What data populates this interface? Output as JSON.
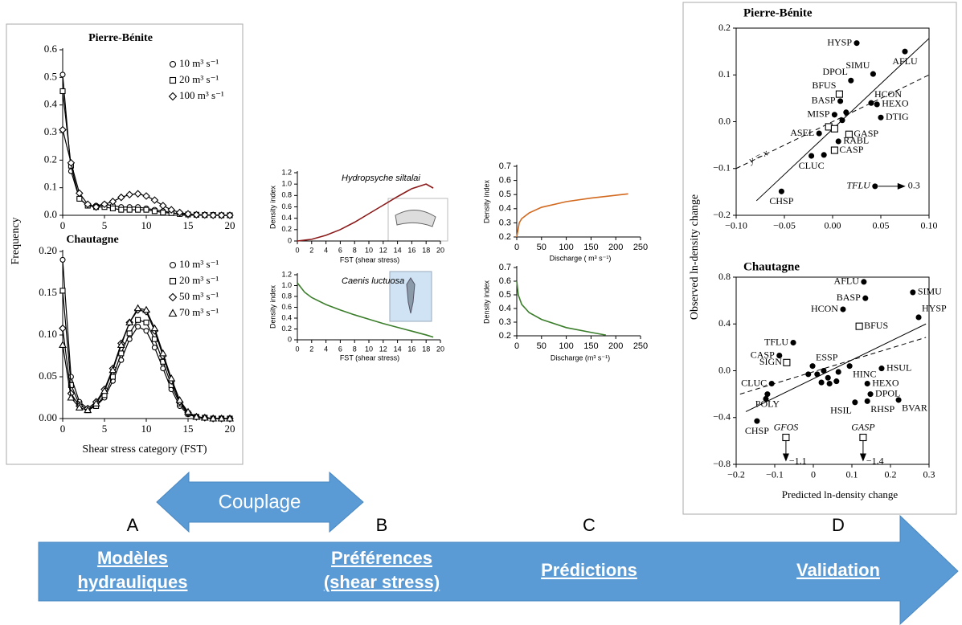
{
  "slide": {
    "couplage": "Couplage",
    "steps": [
      {
        "letter": "A",
        "label": [
          "Modèles",
          "hydrauliques"
        ]
      },
      {
        "letter": "B",
        "label": [
          "Préférences",
          "(shear stress)"
        ]
      },
      {
        "letter": "C",
        "label": [
          "Prédictions"
        ]
      },
      {
        "letter": "D",
        "label": [
          "Validation"
        ]
      }
    ]
  },
  "chart_data": [
    {
      "type": "line",
      "title": "Pierre-Bénite",
      "ylabel": "Frequency",
      "legend": "upper right",
      "xlim": [
        0,
        20
      ],
      "ylim": [
        0,
        0.6
      ],
      "xticks": [
        0,
        5,
        10,
        15,
        20
      ],
      "yticks": [
        {
          "value": 0,
          "label": "0.0"
        },
        0.1,
        0.2,
        0.3,
        0.4,
        0.5,
        0.6
      ],
      "x": [
        0,
        1,
        2,
        3,
        4,
        5,
        6,
        7,
        8,
        9,
        10,
        11,
        12,
        13,
        14,
        15,
        16,
        17,
        18,
        19,
        20
      ],
      "series": [
        {
          "name": "10 m³ s⁻¹",
          "color": "#000000",
          "marker": "circle-open",
          "values": [
            0.51,
            0.16,
            0.06,
            0.035,
            0.035,
            0.04,
            0.035,
            0.03,
            0.03,
            0.03,
            0.025,
            0.02,
            0.015,
            0.01,
            0.005,
            0.003,
            0.002,
            0.001,
            0.001,
            0,
            0
          ]
        },
        {
          "name": "20 m³ s⁻¹",
          "color": "#000000",
          "marker": "square-open",
          "values": [
            0.45,
            0.18,
            0.06,
            0.035,
            0.03,
            0.03,
            0.025,
            0.02,
            0.02,
            0.02,
            0.02,
            0.015,
            0.01,
            0.008,
            0.005,
            0.003,
            0.002,
            0.001,
            0.001,
            0,
            0
          ]
        },
        {
          "name": "100 m³ s⁻¹",
          "color": "#000000",
          "marker": "diamond-open",
          "values": [
            0.31,
            0.19,
            0.08,
            0.04,
            0.03,
            0.04,
            0.05,
            0.065,
            0.075,
            0.078,
            0.07,
            0.055,
            0.035,
            0.02,
            0.01,
            0.005,
            0.002,
            0.001,
            0,
            0,
            0
          ]
        }
      ]
    },
    {
      "type": "line",
      "title": "Chautagne",
      "xlabel": "Shear stress category (FST)",
      "legend": "upper right",
      "xlim": [
        0,
        20
      ],
      "ylim": [
        0,
        0.2
      ],
      "xticks": [
        0,
        5,
        10,
        15,
        20
      ],
      "yticks": [
        {
          "value": 0,
          "label": "0.00"
        },
        0.05,
        {
          "value": 0.1,
          "label": "0.10"
        },
        0.15,
        {
          "value": 0.2,
          "label": "0.20"
        }
      ],
      "x": [
        0,
        1,
        2,
        3,
        4,
        5,
        6,
        7,
        8,
        9,
        10,
        11,
        12,
        13,
        14,
        15,
        16,
        17,
        18,
        19,
        20
      ],
      "series": [
        {
          "name": "10 m³ s⁻¹",
          "color": "#000000",
          "marker": "circle-open",
          "values": [
            0.19,
            0.05,
            0.02,
            0.012,
            0.015,
            0.025,
            0.045,
            0.07,
            0.095,
            0.11,
            0.105,
            0.085,
            0.06,
            0.035,
            0.015,
            0.005,
            0.002,
            0.001,
            0,
            0,
            0
          ]
        },
        {
          "name": "20 m³ s⁻¹",
          "color": "#000000",
          "marker": "square-open",
          "values": [
            0.153,
            0.04,
            0.017,
            0.01,
            0.015,
            0.028,
            0.05,
            0.078,
            0.102,
            0.118,
            0.115,
            0.095,
            0.068,
            0.04,
            0.018,
            0.006,
            0.002,
            0.001,
            0,
            0,
            0
          ]
        },
        {
          "name": "50 m³ s⁻¹",
          "color": "#000000",
          "marker": "diamond-open",
          "values": [
            0.108,
            0.03,
            0.015,
            0.012,
            0.02,
            0.035,
            0.06,
            0.09,
            0.115,
            0.13,
            0.128,
            0.105,
            0.075,
            0.045,
            0.02,
            0.007,
            0.002,
            0.001,
            0,
            0,
            0
          ]
        },
        {
          "name": "70 m³ s⁻¹",
          "color": "#000000",
          "marker": "triangle-open",
          "values": [
            0.088,
            0.025,
            0.013,
            0.01,
            0.018,
            0.033,
            0.058,
            0.088,
            0.115,
            0.132,
            0.13,
            0.108,
            0.078,
            0.048,
            0.022,
            0.008,
            0.002,
            0.001,
            0,
            0,
            0
          ]
        }
      ]
    },
    {
      "type": "line",
      "title": "Hydropsyche siltalai",
      "xlabel": "FST (shear stress)",
      "ylabel": "Density index",
      "xlim": [
        0,
        20
      ],
      "ylim": [
        0,
        1.2
      ],
      "xticks": [
        0,
        2,
        4,
        6,
        8,
        10,
        12,
        14,
        16,
        18,
        20
      ],
      "yticks": [
        0,
        0.2,
        0.4,
        0.6,
        0.8,
        {
          "value": 1,
          "label": "1.0"
        },
        1.2
      ],
      "x": [
        0,
        2,
        4,
        6,
        8,
        10,
        12,
        14,
        16,
        18,
        19
      ],
      "series": [
        {
          "color": "#8b1a1a",
          "marker": "none",
          "values": [
            0,
            0.03,
            0.1,
            0.2,
            0.33,
            0.48,
            0.63,
            0.78,
            0.92,
            1.0,
            0.93
          ]
        }
      ]
    },
    {
      "type": "line",
      "title": "Caenis luctuosa",
      "xlabel": "FST (shear stress)",
      "ylabel": "Density index",
      "xlim": [
        0,
        20
      ],
      "ylim": [
        0,
        1.2
      ],
      "xticks": [
        0,
        2,
        4,
        6,
        8,
        10,
        12,
        14,
        16,
        18,
        20
      ],
      "yticks": [
        0,
        0.2,
        0.4,
        0.6,
        0.8,
        {
          "value": 1,
          "label": "1.0"
        },
        1.2
      ],
      "x": [
        0,
        1,
        2,
        4,
        6,
        8,
        10,
        12,
        14,
        16,
        18,
        19
      ],
      "series": [
        {
          "color": "#3a7d2a",
          "marker": "none",
          "values": [
            1.05,
            0.88,
            0.78,
            0.65,
            0.55,
            0.46,
            0.38,
            0.3,
            0.23,
            0.16,
            0.09,
            0.05
          ]
        }
      ]
    },
    {
      "type": "line",
      "xlabel": "Discharge ( m³ s⁻¹)",
      "ylabel": "Density index",
      "xlim": [
        0,
        250
      ],
      "ylim": [
        0.2,
        0.7
      ],
      "xticks": [
        0,
        50,
        100,
        150,
        200,
        250
      ],
      "yticks": [
        0.2,
        0.3,
        0.4,
        0.5,
        0.6,
        0.7
      ],
      "x": [
        0,
        5,
        10,
        25,
        50,
        100,
        150,
        200,
        225
      ],
      "series": [
        {
          "color": "#d2691e",
          "marker": "none",
          "values": [
            0.2,
            0.3,
            0.33,
            0.37,
            0.41,
            0.45,
            0.475,
            0.495,
            0.505
          ]
        }
      ]
    },
    {
      "type": "line",
      "xlabel": "Discharge (m³ s⁻¹)",
      "ylabel": "Density index",
      "xlim": [
        0,
        250
      ],
      "ylim": [
        0.2,
        0.7
      ],
      "xticks": [
        0,
        50,
        100,
        150,
        200,
        250
      ],
      "yticks": [
        0.2,
        0.3,
        0.4,
        0.5,
        0.6,
        0.7
      ],
      "x": [
        0,
        3,
        10,
        25,
        50,
        100,
        150,
        180
      ],
      "series": [
        {
          "color": "#3a7d2a",
          "marker": "none",
          "values": [
            0.6,
            0.5,
            0.43,
            0.37,
            0.32,
            0.26,
            0.225,
            0.205
          ]
        }
      ]
    },
    {
      "type": "scatter",
      "title": "Pierre-Bénite",
      "ylabel": "Observed ln-density change",
      "offscale_direction": "right",
      "xlim": [
        -0.1,
        0.1
      ],
      "ylim": [
        -0.2,
        0.2
      ],
      "xticks": [
        {
          "value": -0.1,
          "label": "−0.10"
        },
        {
          "value": -0.05,
          "label": "−0.05"
        },
        {
          "value": 0,
          "label": "0.00"
        },
        0.05,
        {
          "value": 0.1,
          "label": "0.10"
        }
      ],
      "yticks": [
        {
          "value": -0.2,
          "label": "−0.2"
        },
        {
          "value": -0.1,
          "label": "−0.1"
        },
        {
          "value": 0,
          "label": "0.0"
        },
        0.1,
        0.2
      ],
      "series": [
        {
          "marker": "circle-filled",
          "color": "#000000",
          "x": [
            0.025,
            0.075,
            0.042,
            0.019,
            0.008,
            0.04,
            0.046,
            0.05,
            0.002,
            -0.014,
            0.006,
            -0.022,
            -0.053,
            -0.009,
            0.01,
            0.014
          ],
          "values": [
            0.168,
            0.15,
            0.102,
            0.088,
            0.044,
            0.04,
            0.037,
            0.009,
            0.015,
            -0.025,
            -0.042,
            -0.073,
            -0.149,
            -0.071,
            0.003,
            0.02
          ],
          "labels": [
            "HYSP",
            "AFLU",
            "SIMU",
            "DPOL",
            "BASP",
            "HCON",
            "HEXO",
            "DTIG",
            "MISP",
            "ASEL",
            "RABL",
            "CLUC",
            "CHSP",
            null,
            null,
            null
          ]
        },
        {
          "marker": "square-open",
          "color": "#000000",
          "x": [
            0.007,
            0.017,
            0.002,
            -0.004,
            0.002
          ],
          "values": [
            0.059,
            -0.027,
            -0.061,
            -0.011,
            -0.015
          ],
          "labels": [
            "BFUS",
            "GASP",
            "CASP",
            null,
            null
          ]
        },
        {
          "marker": "circle-filled",
          "color": "#000000",
          "x": [
            0.044
          ],
          "values": [
            -0.138
          ],
          "labels": [
            "TFLU"
          ],
          "arrow_labels": [
            "0.3"
          ]
        }
      ],
      "lines": [
        {
          "style": "solid",
          "x": [
            -0.079,
            0.1
          ],
          "values": [
            -0.169,
            0.178
          ]
        },
        {
          "style": "dashed",
          "label": "y = x",
          "x": [
            -0.1,
            0.1
          ],
          "values": [
            -0.1,
            0.1
          ]
        }
      ]
    },
    {
      "type": "scatter",
      "title": "Chautagne",
      "xlabel": "Predicted ln-density change",
      "offscale_direction": "down",
      "xlim": [
        -0.2,
        0.3
      ],
      "ylim": [
        -0.8,
        0.8
      ],
      "xticks": [
        {
          "value": -0.2,
          "label": "−0.2"
        },
        {
          "value": -0.1,
          "label": "−0.1"
        },
        0,
        0.1,
        0.2,
        0.3
      ],
      "yticks": [
        {
          "value": -0.8,
          "label": "−0.8"
        },
        {
          "value": -0.4,
          "label": "−0.4"
        },
        {
          "value": 0,
          "label": "0.0"
        },
        0.4,
        0.8
      ],
      "series": [
        {
          "marker": "circle-filled",
          "color": "#000000",
          "x": [
            0.131,
            0.258,
            0.135,
            0.273,
            0.077,
            -0.052,
            -0.088,
            -0.002,
            0.177,
            0.094,
            0.14,
            0.148,
            0.221,
            0.108,
            0.14,
            -0.108,
            -0.119,
            -0.146,
            -0.013,
            0.01,
            0.027,
            0.038,
            0.021,
            0.042,
            0.06,
            0.065,
            -0.123
          ],
          "values": [
            0.76,
            0.67,
            0.62,
            0.457,
            0.525,
            0.24,
            0.13,
            0.04,
            0.02,
            0.04,
            -0.11,
            -0.2,
            -0.25,
            -0.27,
            -0.26,
            -0.11,
            -0.2,
            -0.43,
            -0.03,
            -0.03,
            0,
            -0.06,
            -0.1,
            -0.11,
            -0.09,
            -0.01,
            -0.24
          ],
          "labels": [
            "AFLU",
            "SIMU",
            "BASP",
            "HYSP",
            "HCON",
            "TFLU",
            "CASP",
            "ESSP",
            "HSUL",
            "HINC",
            "HEXO",
            "DPOL",
            "BVAR",
            "HSIL",
            "RHSP",
            "CLUC",
            "POLY",
            "CHSP",
            null,
            null,
            null,
            null,
            null,
            null,
            null,
            null,
            null
          ]
        },
        {
          "marker": "square-open",
          "color": "#000000",
          "x": [
            0.119,
            -0.069
          ],
          "values": [
            0.38,
            0.07
          ],
          "labels": [
            "BFUS",
            "SIGN"
          ]
        },
        {
          "marker": "square-open",
          "color": "#000000",
          "x": [
            -0.071,
            0.129
          ],
          "values": [
            -0.57,
            -0.57
          ],
          "labels": [
            "GFOS",
            "GASP"
          ],
          "arrow_labels": [
            "−1.1",
            "−1.4"
          ]
        }
      ],
      "lines": [
        {
          "style": "solid",
          "x": [
            -0.175,
            0.292
          ],
          "values": [
            -0.35,
            0.4
          ]
        },
        {
          "style": "dashed",
          "x": [
            -0.19,
            0.292
          ],
          "values": [
            -0.2,
            0.285
          ]
        }
      ]
    }
  ]
}
